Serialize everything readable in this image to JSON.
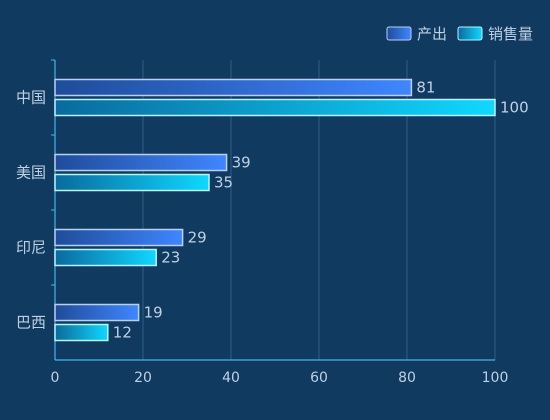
{
  "colors": {
    "background": "#103a60",
    "axis": "#47b5e8",
    "grid": "#2f5f87",
    "label": "#bfd0e4",
    "production_start": "#1f4c9a",
    "production_end": "#3f86ff",
    "production_border": "#b8cff5",
    "sales_start": "#0a6a9d",
    "sales_end": "#0fd8ff",
    "sales_border": "#b7f3ff"
  },
  "chart_data": {
    "type": "bar",
    "orientation": "horizontal",
    "categories": [
      "中国",
      "美国",
      "印尼",
      "巴西"
    ],
    "series": [
      {
        "name": "产出",
        "values": [
          81,
          39,
          29,
          19
        ],
        "colorKey": "production"
      },
      {
        "name": "销售量",
        "values": [
          100,
          35,
          23,
          12
        ],
        "colorKey": "sales"
      }
    ],
    "xlim": [
      0,
      100
    ],
    "xticks": [
      0,
      20,
      40,
      60,
      80,
      100
    ],
    "grid": true,
    "legend": "top-right",
    "data_labels": true
  }
}
